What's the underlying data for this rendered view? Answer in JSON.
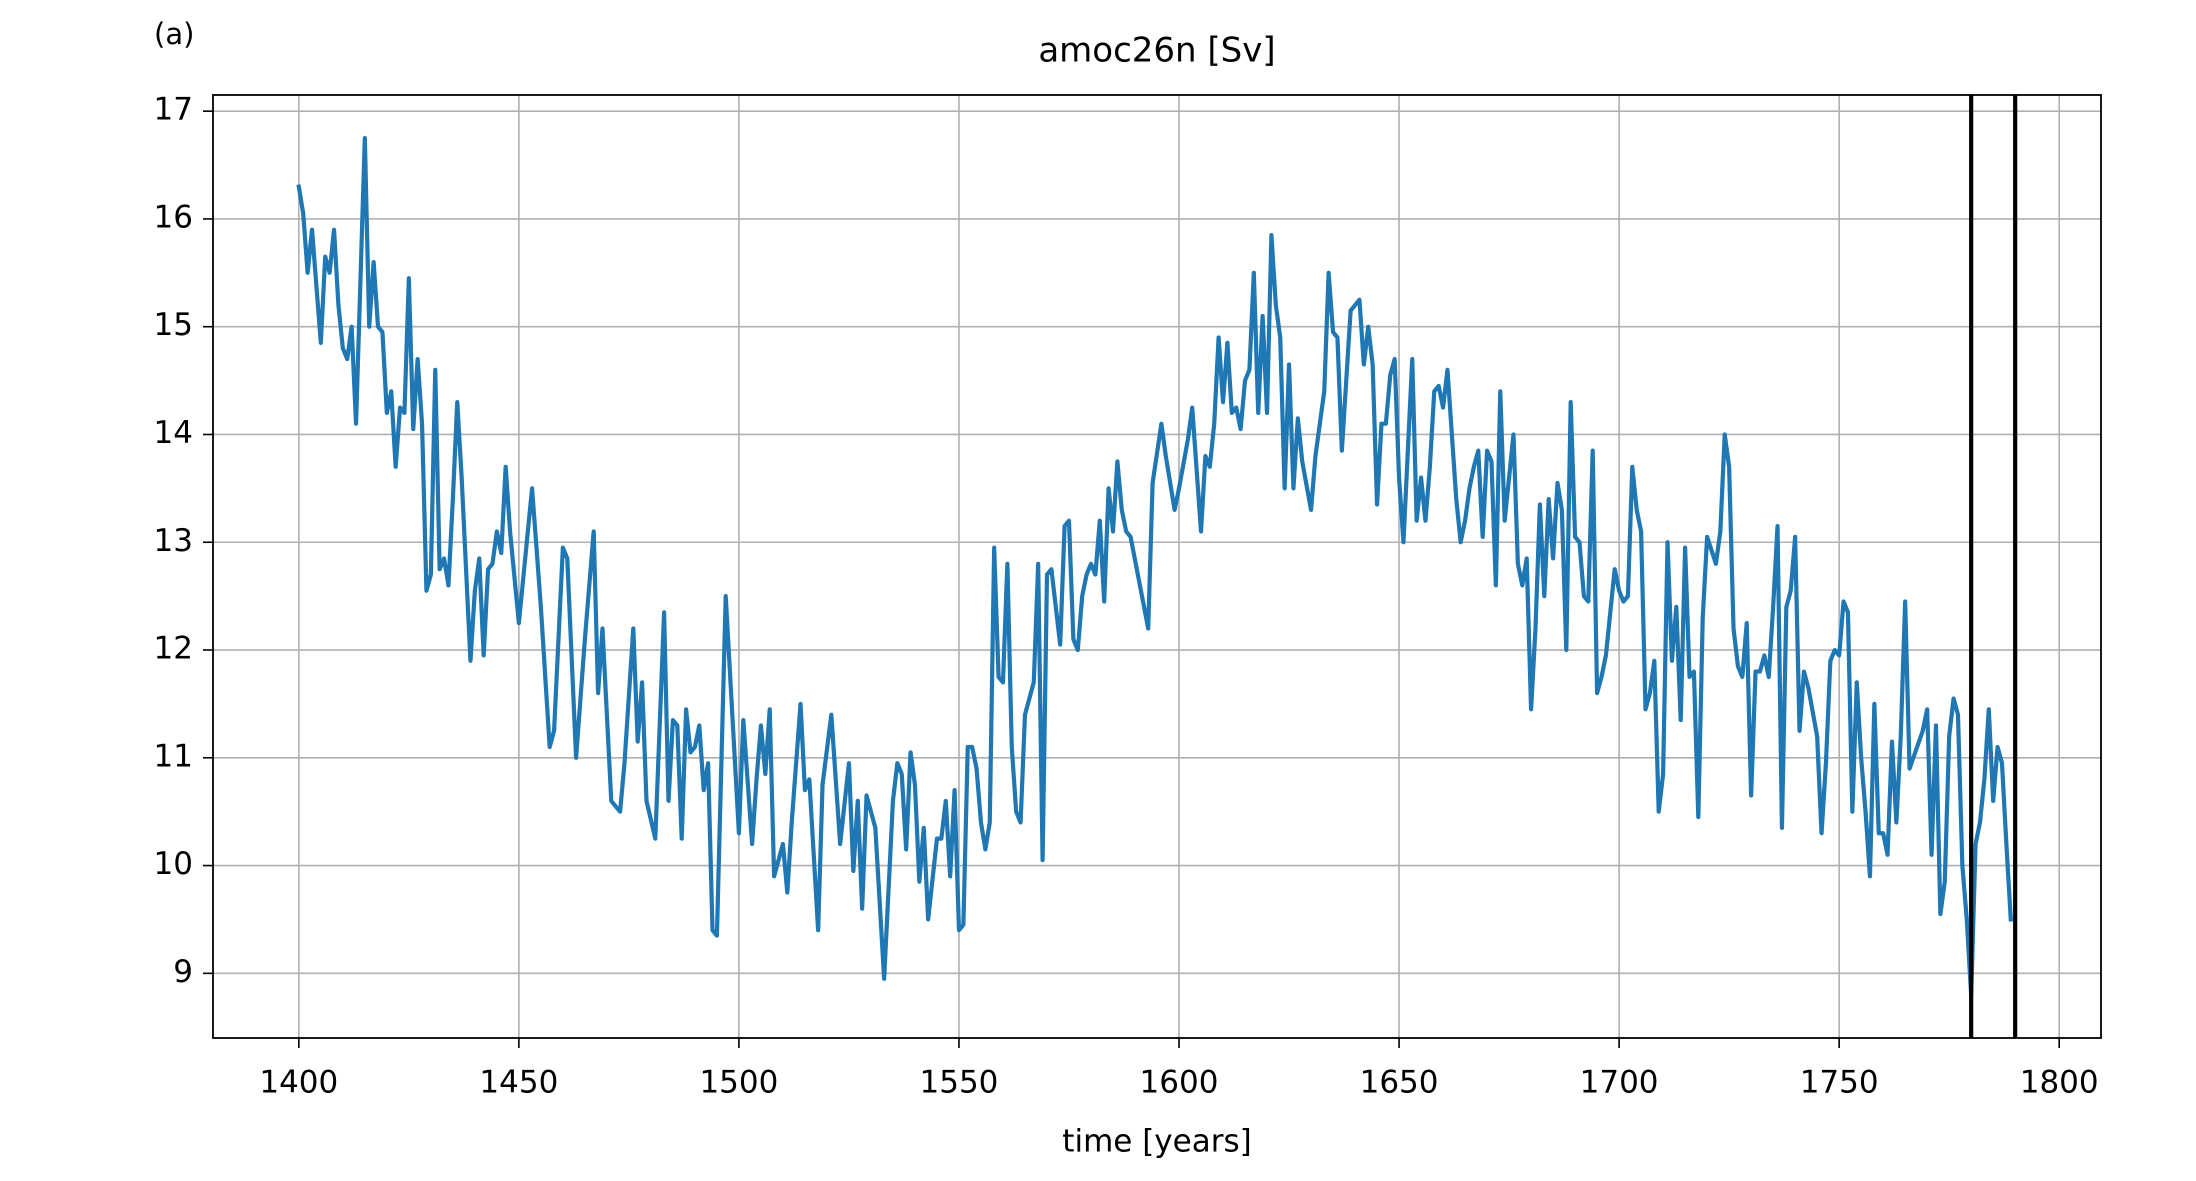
{
  "chart_data": {
    "type": "line",
    "panel_label": "(a)",
    "title": "amoc26n [Sv]",
    "xlabel": "time [years]",
    "color": "#1f77b4",
    "grid": true,
    "xlim": [
      1380.5,
      1809.5
    ],
    "ylim": [
      8.4,
      17.15
    ],
    "xticks": [
      1400,
      1450,
      1500,
      1550,
      1600,
      1650,
      1700,
      1750,
      1800
    ],
    "yticks": [
      9,
      10,
      11,
      12,
      13,
      14,
      15,
      16,
      17
    ],
    "vlines": [
      1780,
      1790
    ],
    "vline_color": "#000000",
    "x": [
      1400,
      1401,
      1402,
      1403,
      1405,
      1406,
      1407,
      1408,
      1409,
      1410,
      1411,
      1412,
      1413,
      1415,
      1416,
      1417,
      1418,
      1419,
      1420,
      1421,
      1422,
      1423,
      1424,
      1425,
      1426,
      1427,
      1428,
      1429,
      1430,
      1431,
      1432,
      1433,
      1434,
      1435,
      1436,
      1437,
      1439,
      1440,
      1441,
      1442,
      1443,
      1444,
      1445,
      1446,
      1447,
      1448,
      1450,
      1453,
      1455,
      1457,
      1458,
      1460,
      1461,
      1463,
      1465,
      1467,
      1468,
      1469,
      1471,
      1473,
      1474,
      1476,
      1477,
      1478,
      1479,
      1481,
      1483,
      1484,
      1485,
      1486,
      1487,
      1488,
      1489,
      1490,
      1491,
      1492,
      1493,
      1494,
      1495,
      1497,
      1500,
      1501,
      1503,
      1504,
      1505,
      1506,
      1507,
      1508,
      1510,
      1511,
      1512,
      1514,
      1515,
      1516,
      1518,
      1519,
      1521,
      1523,
      1525,
      1526,
      1527,
      1528,
      1529,
      1531,
      1533,
      1535,
      1536,
      1537,
      1538,
      1539,
      1540,
      1541,
      1542,
      1543,
      1545,
      1546,
      1547,
      1548,
      1549,
      1550,
      1551,
      1552,
      1553,
      1554,
      1555,
      1556,
      1557,
      1558,
      1559,
      1560,
      1561,
      1562,
      1563,
      1564,
      1565,
      1567,
      1568,
      1569,
      1570,
      1571,
      1572,
      1573,
      1574,
      1575,
      1576,
      1577,
      1578,
      1579,
      1580,
      1581,
      1582,
      1583,
      1584,
      1585,
      1586,
      1587,
      1588,
      1589,
      1593,
      1594,
      1596,
      1597,
      1599,
      1600,
      1602,
      1603,
      1605,
      1606,
      1607,
      1608,
      1609,
      1610,
      1611,
      1612,
      1613,
      1614,
      1615,
      1616,
      1617,
      1618,
      1619,
      1620,
      1621,
      1622,
      1623,
      1624,
      1625,
      1626,
      1627,
      1628,
      1630,
      1631,
      1632,
      1633,
      1634,
      1635,
      1636,
      1637,
      1638,
      1639,
      1640,
      1641,
      1642,
      1643,
      1644,
      1645,
      1646,
      1647,
      1648,
      1649,
      1650,
      1651,
      1653,
      1654,
      1655,
      1656,
      1657,
      1658,
      1659,
      1660,
      1661,
      1662,
      1663,
      1664,
      1665,
      1666,
      1667,
      1668,
      1669,
      1670,
      1671,
      1672,
      1673,
      1674,
      1676,
      1677,
      1678,
      1679,
      1680,
      1681,
      1682,
      1683,
      1684,
      1685,
      1686,
      1687,
      1688,
      1689,
      1690,
      1691,
      1692,
      1693,
      1694,
      1695,
      1696,
      1697,
      1699,
      1700,
      1701,
      1702,
      1703,
      1704,
      1705,
      1706,
      1707,
      1708,
      1709,
      1710,
      1711,
      1712,
      1713,
      1714,
      1715,
      1716,
      1717,
      1718,
      1719,
      1720,
      1722,
      1723,
      1724,
      1725,
      1726,
      1727,
      1728,
      1729,
      1730,
      1731,
      1732,
      1733,
      1734,
      1735,
      1736,
      1737,
      1738,
      1739,
      1740,
      1741,
      1742,
      1743,
      1745,
      1746,
      1747,
      1748,
      1749,
      1750,
      1751,
      1752,
      1753,
      1754,
      1755,
      1756,
      1757,
      1758,
      1759,
      1760,
      1761,
      1762,
      1763,
      1764,
      1765,
      1766,
      1769,
      1770,
      1771,
      1772,
      1773,
      1774,
      1775,
      1776,
      1777,
      1778,
      1779,
      1780,
      1781,
      1782,
      1783,
      1784,
      1785,
      1786,
      1787,
      1788,
      1789
    ],
    "values": [
      16.3,
      16.05,
      15.5,
      15.9,
      14.85,
      15.65,
      15.5,
      15.9,
      15.2,
      14.8,
      14.7,
      15.0,
      14.1,
      16.75,
      15.0,
      15.6,
      15.0,
      14.95,
      14.2,
      14.4,
      13.7,
      14.25,
      14.2,
      15.45,
      14.05,
      14.7,
      14.1,
      12.55,
      12.7,
      14.6,
      12.75,
      12.85,
      12.6,
      13.4,
      14.3,
      13.6,
      11.9,
      12.55,
      12.85,
      11.95,
      12.75,
      12.8,
      13.1,
      12.9,
      13.7,
      13.1,
      12.25,
      13.5,
      12.4,
      11.1,
      11.25,
      12.95,
      12.85,
      11.0,
      12.1,
      13.1,
      11.6,
      12.2,
      10.6,
      10.5,
      10.95,
      12.2,
      11.15,
      11.7,
      10.6,
      10.25,
      12.35,
      10.6,
      11.35,
      11.3,
      10.25,
      11.45,
      11.05,
      11.1,
      11.3,
      10.7,
      10.95,
      9.4,
      9.35,
      12.5,
      10.3,
      11.35,
      10.2,
      10.8,
      11.3,
      10.85,
      11.45,
      9.9,
      10.2,
      9.75,
      10.4,
      11.5,
      10.7,
      10.8,
      9.4,
      10.75,
      11.4,
      10.2,
      10.95,
      9.95,
      10.6,
      9.6,
      10.65,
      10.35,
      8.95,
      10.6,
      10.95,
      10.85,
      10.15,
      11.05,
      10.75,
      9.85,
      10.35,
      9.5,
      10.25,
      10.25,
      10.6,
      9.9,
      10.7,
      9.4,
      9.45,
      11.1,
      11.1,
      10.9,
      10.4,
      10.15,
      10.4,
      12.95,
      11.75,
      11.7,
      12.8,
      11.1,
      10.5,
      10.4,
      11.4,
      11.7,
      12.8,
      10.05,
      12.7,
      12.75,
      12.4,
      12.05,
      13.15,
      13.2,
      12.1,
      12.0,
      12.5,
      12.7,
      12.8,
      12.7,
      13.2,
      12.45,
      13.5,
      13.1,
      13.75,
      13.3,
      13.1,
      13.05,
      12.2,
      13.55,
      14.1,
      13.8,
      13.3,
      13.5,
      13.95,
      14.25,
      13.1,
      13.8,
      13.7,
      14.1,
      14.9,
      14.3,
      14.85,
      14.2,
      14.25,
      14.05,
      14.5,
      14.6,
      15.5,
      14.2,
      15.1,
      14.2,
      15.85,
      15.2,
      14.9,
      13.5,
      14.65,
      13.5,
      14.15,
      13.75,
      13.3,
      13.8,
      14.1,
      14.4,
      15.5,
      14.95,
      14.9,
      13.85,
      14.5,
      15.15,
      15.2,
      15.25,
      14.65,
      15.0,
      14.65,
      13.35,
      14.1,
      14.1,
      14.55,
      14.7,
      13.6,
      13.0,
      14.7,
      13.2,
      13.6,
      13.2,
      13.7,
      14.4,
      14.45,
      14.25,
      14.6,
      14.0,
      13.4,
      13.0,
      13.2,
      13.5,
      13.7,
      13.85,
      13.05,
      13.85,
      13.75,
      12.6,
      14.4,
      13.2,
      14.0,
      12.8,
      12.6,
      12.85,
      11.45,
      12.2,
      13.35,
      12.5,
      13.4,
      12.85,
      13.55,
      13.3,
      12.0,
      14.3,
      13.05,
      13.0,
      12.5,
      12.45,
      13.85,
      11.6,
      11.75,
      11.95,
      12.75,
      12.55,
      12.45,
      12.5,
      13.7,
      13.3,
      13.1,
      11.45,
      11.6,
      11.9,
      10.5,
      10.85,
      13.0,
      11.9,
      12.4,
      11.35,
      12.95,
      11.75,
      11.8,
      10.45,
      12.3,
      13.05,
      12.8,
      13.1,
      14.0,
      13.7,
      12.2,
      11.85,
      11.75,
      12.25,
      10.65,
      11.8,
      11.8,
      11.95,
      11.75,
      12.4,
      13.15,
      10.35,
      12.4,
      12.55,
      13.05,
      11.25,
      11.8,
      11.65,
      11.2,
      10.3,
      10.95,
      11.9,
      12.0,
      11.95,
      12.45,
      12.35,
      10.5,
      11.7,
      11.0,
      10.5,
      9.9,
      11.5,
      10.3,
      10.3,
      10.1,
      11.15,
      10.4,
      11.2,
      12.45,
      10.9,
      11.25,
      11.45,
      10.1,
      11.3,
      9.55,
      9.85,
      11.2,
      11.55,
      11.4,
      10.0,
      9.5,
      8.8,
      10.2,
      10.4,
      10.8,
      11.45,
      10.6,
      11.1,
      10.95,
      10.2,
      9.5
    ]
  }
}
